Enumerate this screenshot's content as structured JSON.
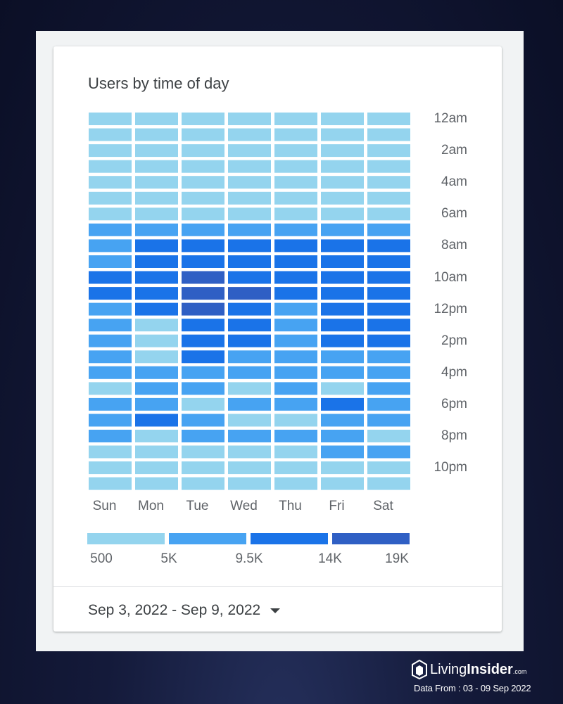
{
  "chart_data": {
    "type": "heatmap",
    "title": "Users by time of day",
    "x_categories": [
      "Sun",
      "Mon",
      "Tue",
      "Wed",
      "Thu",
      "Fri",
      "Sat"
    ],
    "y_tick_labels": [
      "12am",
      "2am",
      "4am",
      "6am",
      "8am",
      "10am",
      "12pm",
      "2pm",
      "4pm",
      "6pm",
      "8pm",
      "10pm"
    ],
    "hours": 24,
    "color_scale": {
      "thresholds": [
        "500",
        "5K",
        "9.5K",
        "14K",
        "19K"
      ],
      "colors": [
        "#94d4ee",
        "#47a3f2",
        "#1a73e8",
        "#2f5fc4"
      ]
    },
    "levels_note": "level index per hour (0=500-5K, 1=5K-9.5K, 2=9.5K-14K, 3=14K-19K)",
    "levels": [
      [
        0,
        0,
        0,
        0,
        0,
        0,
        0
      ],
      [
        0,
        0,
        0,
        0,
        0,
        0,
        0
      ],
      [
        0,
        0,
        0,
        0,
        0,
        0,
        0
      ],
      [
        0,
        0,
        0,
        0,
        0,
        0,
        0
      ],
      [
        0,
        0,
        0,
        0,
        0,
        0,
        0
      ],
      [
        0,
        0,
        0,
        0,
        0,
        0,
        0
      ],
      [
        0,
        0,
        0,
        0,
        0,
        0,
        0
      ],
      [
        1,
        1,
        1,
        1,
        1,
        1,
        1
      ],
      [
        1,
        2,
        2,
        2,
        2,
        2,
        2
      ],
      [
        1,
        2,
        2,
        2,
        2,
        2,
        2
      ],
      [
        2,
        2,
        3,
        2,
        2,
        2,
        2
      ],
      [
        2,
        2,
        3,
        3,
        2,
        2,
        2
      ],
      [
        1,
        2,
        3,
        2,
        1,
        2,
        2
      ],
      [
        1,
        0,
        2,
        2,
        1,
        2,
        2
      ],
      [
        1,
        0,
        2,
        2,
        1,
        2,
        2
      ],
      [
        1,
        0,
        2,
        1,
        1,
        1,
        1
      ],
      [
        1,
        1,
        1,
        1,
        1,
        1,
        1
      ],
      [
        0,
        1,
        1,
        0,
        1,
        0,
        1
      ],
      [
        1,
        1,
        0,
        1,
        1,
        2,
        1
      ],
      [
        1,
        2,
        1,
        0,
        0,
        1,
        1
      ],
      [
        1,
        0,
        1,
        1,
        1,
        1,
        0
      ],
      [
        0,
        0,
        0,
        0,
        0,
        1,
        1
      ],
      [
        0,
        0,
        0,
        0,
        0,
        0,
        0
      ],
      [
        0,
        0,
        0,
        0,
        0,
        0,
        0
      ]
    ]
  },
  "date_range": {
    "label": "Sep 3, 2022 - Sep 9, 2022",
    "dropdown_icon": "caret-down-icon"
  },
  "branding": {
    "name_light": "Living",
    "name_bold": "Insider",
    "suffix": ".com",
    "data_note": "Data From : 03 - 09 Sep 2022"
  }
}
